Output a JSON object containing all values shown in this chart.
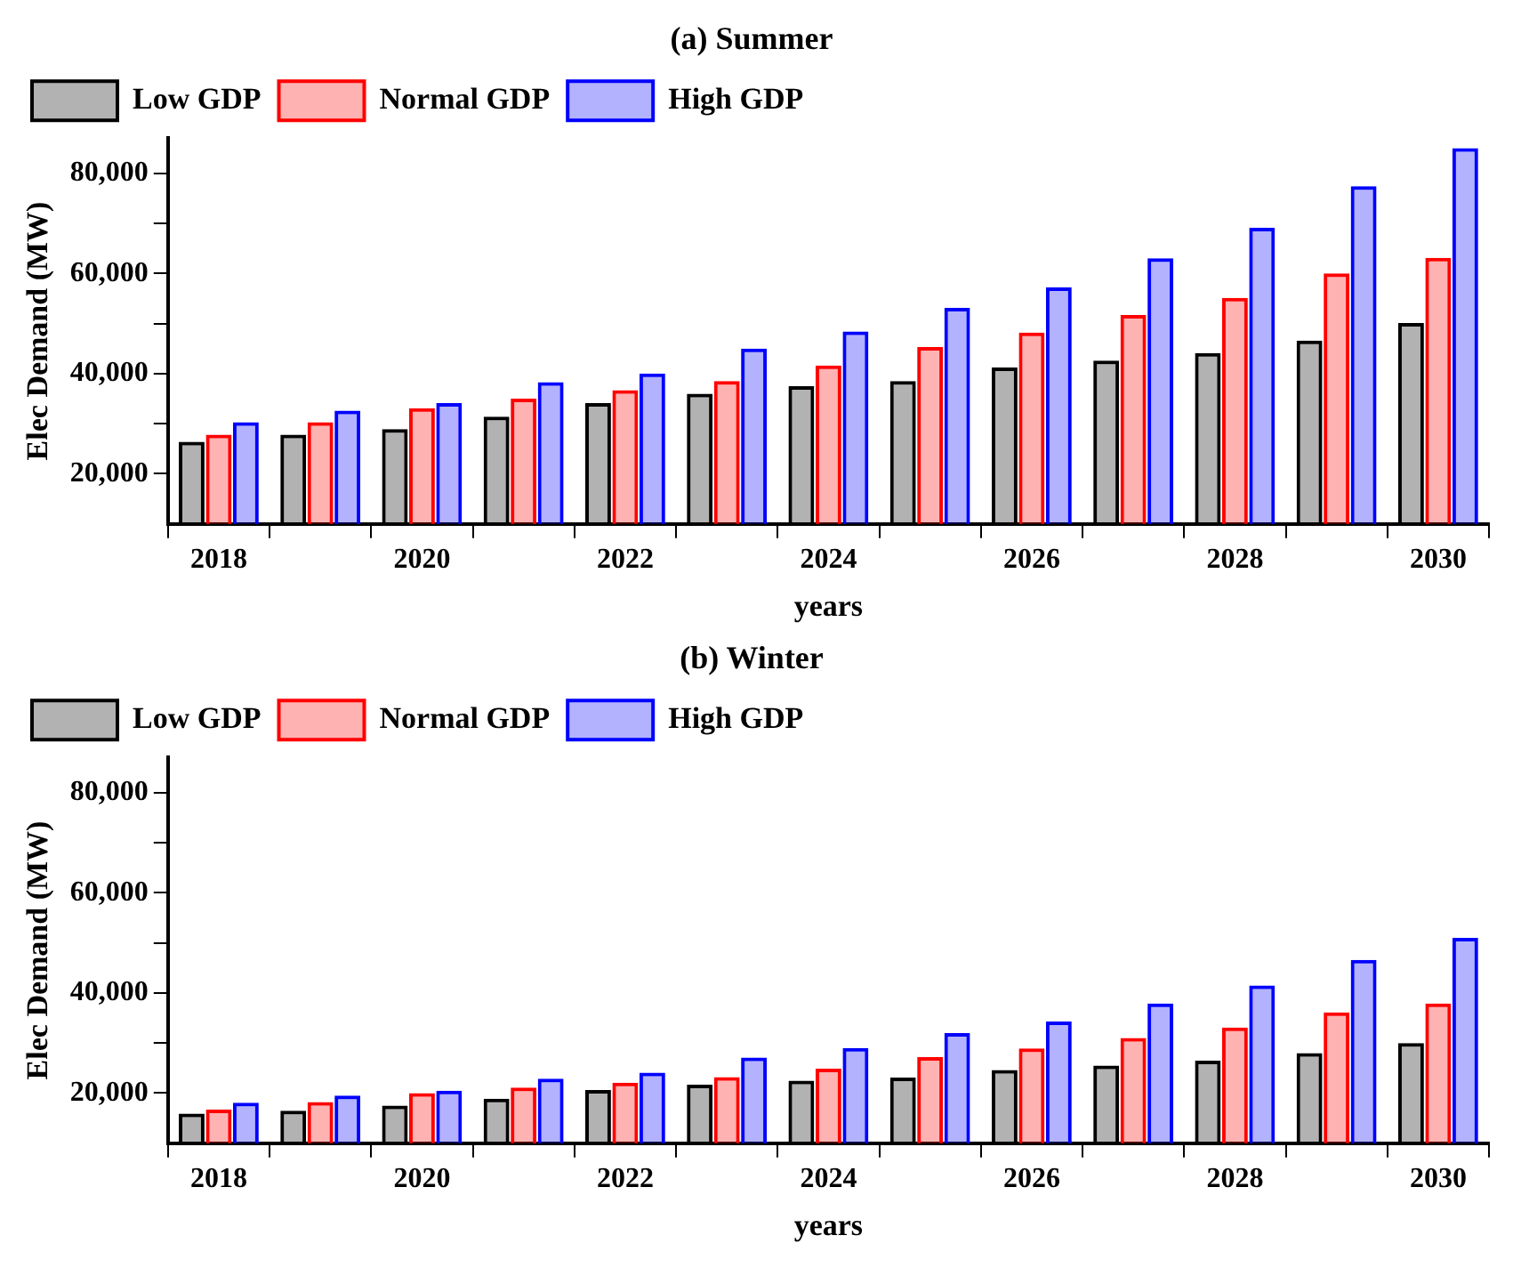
{
  "chart_data": [
    {
      "type": "bar",
      "title": "(a) Summer",
      "xlabel": "years",
      "ylabel": "Elec Demand (MW)",
      "categories": [
        "2018",
        null,
        "2020",
        null,
        "2022",
        null,
        "2024",
        null,
        "2026",
        null,
        "2028",
        null,
        "2030"
      ],
      "series": [
        {
          "name": "Low GDP",
          "color": "#000000",
          "values": [
            26400,
            27800,
            28900,
            31400,
            34100,
            36000,
            37500,
            38500,
            41200,
            42600,
            44100,
            46600,
            50100
          ]
        },
        {
          "name": "Normal GDP",
          "color": "#ff0000",
          "values": [
            27800,
            30300,
            33100,
            35000,
            36700,
            38500,
            41600,
            45300,
            48200,
            51700,
            55100,
            60000,
            63100
          ]
        },
        {
          "name": "High GDP",
          "color": "#0000ff",
          "values": [
            30300,
            32600,
            34100,
            38300,
            40000,
            45000,
            48400,
            53100,
            57200,
            63000,
            69100,
            77400,
            85000
          ]
        }
      ],
      "ylim": [
        10000,
        87000
      ],
      "yticks": [
        {
          "value": 20000,
          "label": "20,000"
        },
        {
          "value": 30000,
          "label": null
        },
        {
          "value": 40000,
          "label": "40,000"
        },
        {
          "value": 50000,
          "label": null
        },
        {
          "value": 60000,
          "label": "60,000"
        },
        {
          "value": 70000,
          "label": null
        },
        {
          "value": 80000,
          "label": "80,000"
        }
      ],
      "grid": false,
      "legend": "top left"
    },
    {
      "type": "bar",
      "title": "(b) Winter",
      "xlabel": "years",
      "ylabel": "Elec Demand (MW)",
      "categories": [
        "2018",
        null,
        "2020",
        null,
        "2022",
        null,
        "2024",
        null,
        "2026",
        null,
        "2028",
        null,
        "2030"
      ],
      "series": [
        {
          "name": "Low GDP",
          "color": "#000000",
          "values": [
            15900,
            16500,
            17500,
            18900,
            20600,
            21700,
            22500,
            23100,
            24600,
            25500,
            26500,
            28000,
            30000
          ]
        },
        {
          "name": "Normal GDP",
          "color": "#ff0000",
          "values": [
            16700,
            18200,
            20000,
            21100,
            22100,
            23200,
            24900,
            27200,
            28900,
            31000,
            33100,
            36100,
            37900
          ]
        },
        {
          "name": "High GDP",
          "color": "#0000ff",
          "values": [
            18100,
            19500,
            20500,
            22900,
            24100,
            27100,
            29000,
            32000,
            34300,
            37900,
            41500,
            46600,
            51000
          ]
        }
      ],
      "ylim": [
        10000,
        87000
      ],
      "yticks": [
        {
          "value": 20000,
          "label": "20,000"
        },
        {
          "value": 30000,
          "label": null
        },
        {
          "value": 40000,
          "label": "40,000"
        },
        {
          "value": 50000,
          "label": null
        },
        {
          "value": 60000,
          "label": "60,000"
        },
        {
          "value": 70000,
          "label": null
        },
        {
          "value": 80000,
          "label": "80,000"
        }
      ],
      "grid": false,
      "legend": "top left"
    }
  ]
}
